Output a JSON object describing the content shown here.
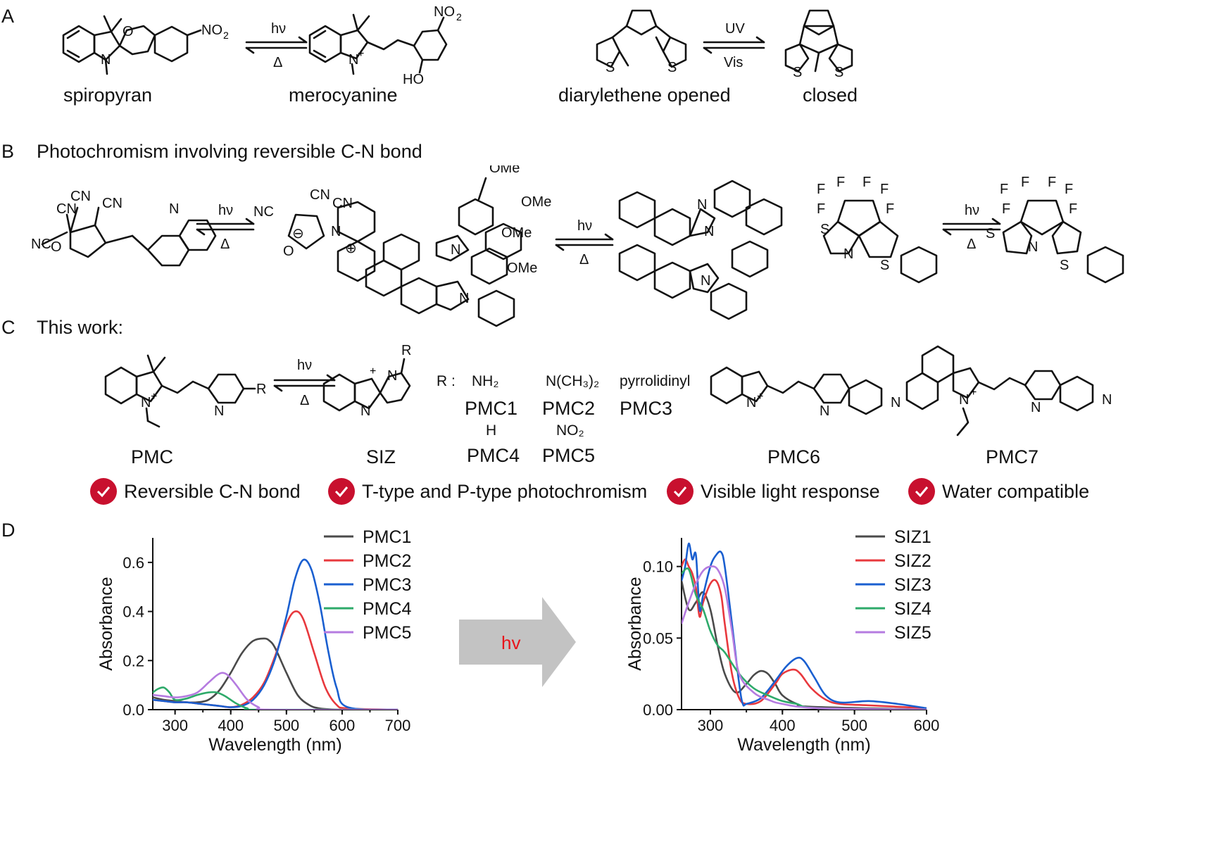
{
  "panels": {
    "A": {
      "letter": "A",
      "captions": [
        "spiropyran",
        "merocyanine",
        "diarylethene opened",
        "closed"
      ],
      "arrow1": {
        "top": "hν",
        "bottom": "Δ"
      },
      "arrow2": {
        "top": "UV",
        "bottom": "Vis"
      }
    },
    "B": {
      "letter": "B",
      "title": "Photochromism involving reversible C-N bond",
      "arrow1": {
        "top": "hν",
        "bottom": "Δ"
      },
      "arrow2": {
        "top": "hν",
        "bottom": "Δ"
      },
      "arrow3": {
        "top": "hν",
        "bottom": "Δ"
      }
    },
    "C": {
      "letter": "C",
      "title": "This work:",
      "arrow": {
        "top": "hν",
        "bottom": "Δ"
      },
      "r_label": "R :",
      "substituents": [
        {
          "group": "NH₂",
          "name": "PMC1"
        },
        {
          "group": "N(CH₃)₂",
          "name": "PMC2"
        },
        {
          "group": "pyrrolidinyl",
          "name": "PMC3"
        },
        {
          "group": "H",
          "name": "PMC4"
        },
        {
          "group": "NO₂",
          "name": "PMC5"
        }
      ],
      "captions": [
        "PMC",
        "SIZ",
        "PMC6",
        "PMC7"
      ],
      "features": [
        "Reversible C-N bond",
        "T-type and P-type photochromism",
        "Visible light response",
        "Water compatible"
      ]
    },
    "D": {
      "letter": "D",
      "arrow_label": "hv",
      "arrow_label_color": "#e8141b",
      "arrow_color": "#c3c3c3"
    }
  },
  "chart_data": [
    {
      "type": "line",
      "xlabel": "Wavelength (nm)",
      "ylabel": "Absorbance",
      "xlim": [
        260,
        700
      ],
      "ylim": [
        0,
        0.7
      ],
      "xticks": [
        300,
        400,
        500,
        600,
        700
      ],
      "yticks": [
        0.0,
        0.2,
        0.4,
        0.6
      ],
      "ytick_labels": [
        "0.0",
        "0.2",
        "0.4",
        "0.6"
      ],
      "legend_position": "top-right",
      "series": [
        {
          "name": "PMC1",
          "color": "#4a4a4a",
          "x": [
            260,
            280,
            300,
            320,
            340,
            360,
            380,
            400,
            420,
            440,
            460,
            470,
            480,
            500,
            520,
            540,
            560,
            600,
            700
          ],
          "y": [
            0.05,
            0.04,
            0.035,
            0.03,
            0.03,
            0.04,
            0.08,
            0.15,
            0.23,
            0.28,
            0.29,
            0.28,
            0.25,
            0.15,
            0.06,
            0.02,
            0.005,
            0.0,
            0.0
          ]
        },
        {
          "name": "PMC2",
          "color": "#e8383d",
          "x": [
            260,
            280,
            300,
            320,
            340,
            360,
            380,
            400,
            420,
            440,
            460,
            480,
            500,
            515,
            530,
            550,
            570,
            590,
            610,
            700
          ],
          "y": [
            0.04,
            0.035,
            0.03,
            0.03,
            0.025,
            0.02,
            0.015,
            0.01,
            0.02,
            0.05,
            0.11,
            0.22,
            0.35,
            0.4,
            0.37,
            0.23,
            0.09,
            0.02,
            0.005,
            0.0
          ]
        },
        {
          "name": "PMC3",
          "color": "#1a5fd0",
          "x": [
            260,
            280,
            300,
            320,
            340,
            360,
            380,
            400,
            420,
            440,
            460,
            480,
            500,
            515,
            530,
            545,
            560,
            575,
            590,
            610,
            700
          ],
          "y": [
            0.04,
            0.035,
            0.03,
            0.03,
            0.025,
            0.02,
            0.015,
            0.01,
            0.015,
            0.04,
            0.1,
            0.21,
            0.38,
            0.53,
            0.61,
            0.57,
            0.43,
            0.24,
            0.09,
            0.01,
            0.0
          ]
        },
        {
          "name": "PMC4",
          "color": "#2eaa6a",
          "x": [
            260,
            270,
            280,
            290,
            300,
            320,
            340,
            360,
            375,
            390,
            410,
            430,
            450,
            700
          ],
          "y": [
            0.07,
            0.085,
            0.09,
            0.07,
            0.04,
            0.045,
            0.06,
            0.07,
            0.07,
            0.055,
            0.025,
            0.005,
            0.0,
            0.0
          ]
        },
        {
          "name": "PMC5",
          "color": "#b57be0",
          "x": [
            260,
            280,
            300,
            320,
            340,
            360,
            375,
            385,
            395,
            410,
            430,
            450,
            470,
            700
          ],
          "y": [
            0.06,
            0.055,
            0.05,
            0.055,
            0.07,
            0.11,
            0.14,
            0.15,
            0.14,
            0.1,
            0.04,
            0.01,
            0.0,
            0.0
          ]
        }
      ]
    },
    {
      "type": "line",
      "xlabel": "Wavelength (nm)",
      "ylabel": "Absorbance",
      "xlim": [
        260,
        600
      ],
      "ylim": [
        0,
        0.12
      ],
      "xticks": [
        300,
        400,
        500,
        600
      ],
      "yticks": [
        0.0,
        0.05,
        0.1
      ],
      "ytick_labels": [
        "0.00",
        "0.05",
        "0.10"
      ],
      "legend_position": "top-right",
      "series": [
        {
          "name": "SIZ1",
          "color": "#4a4a4a",
          "x": [
            260,
            270,
            280,
            290,
            300,
            310,
            320,
            335,
            350,
            360,
            370,
            380,
            390,
            400,
            420,
            440,
            600
          ],
          "y": [
            0.09,
            0.07,
            0.075,
            0.082,
            0.07,
            0.045,
            0.025,
            0.012,
            0.018,
            0.024,
            0.027,
            0.025,
            0.018,
            0.01,
            0.004,
            0.002,
            0.0
          ]
        },
        {
          "name": "SIZ2",
          "color": "#e8383d",
          "x": [
            260,
            265,
            270,
            275,
            280,
            285,
            290,
            300,
            308,
            315,
            320,
            330,
            340,
            350,
            370,
            390,
            400,
            415,
            425,
            440,
            460,
            480,
            520,
            600
          ],
          "y": [
            0.1,
            0.105,
            0.1,
            0.095,
            0.085,
            0.065,
            0.075,
            0.088,
            0.09,
            0.08,
            0.06,
            0.025,
            0.008,
            0.004,
            0.006,
            0.018,
            0.025,
            0.028,
            0.025,
            0.015,
            0.007,
            0.004,
            0.003,
            0.001
          ]
        },
        {
          "name": "SIZ3",
          "color": "#1a5fd0",
          "x": [
            260,
            265,
            270,
            275,
            280,
            285,
            290,
            300,
            308,
            315,
            320,
            330,
            340,
            345,
            350,
            370,
            390,
            405,
            420,
            430,
            445,
            460,
            480,
            520,
            560,
            600
          ],
          "y": [
            0.09,
            0.1,
            0.116,
            0.105,
            0.108,
            0.07,
            0.08,
            0.1,
            0.108,
            0.11,
            0.1,
            0.06,
            0.018,
            0.004,
            0.004,
            0.008,
            0.02,
            0.03,
            0.036,
            0.034,
            0.022,
            0.01,
            0.005,
            0.006,
            0.004,
            0.001
          ]
        },
        {
          "name": "SIZ4",
          "color": "#2eaa6a",
          "x": [
            260,
            270,
            280,
            290,
            300,
            310,
            320,
            340,
            360,
            380,
            400,
            420,
            450,
            600
          ],
          "y": [
            0.095,
            0.098,
            0.08,
            0.07,
            0.055,
            0.045,
            0.04,
            0.025,
            0.015,
            0.01,
            0.006,
            0.004,
            0.001,
            0.0
          ]
        },
        {
          "name": "SIZ5",
          "color": "#b57be0",
          "x": [
            260,
            270,
            280,
            290,
            300,
            310,
            320,
            330,
            340,
            360,
            380,
            400,
            450,
            600
          ],
          "y": [
            0.06,
            0.075,
            0.088,
            0.097,
            0.1,
            0.098,
            0.085,
            0.055,
            0.025,
            0.012,
            0.007,
            0.004,
            0.001,
            0.0
          ]
        }
      ]
    }
  ]
}
